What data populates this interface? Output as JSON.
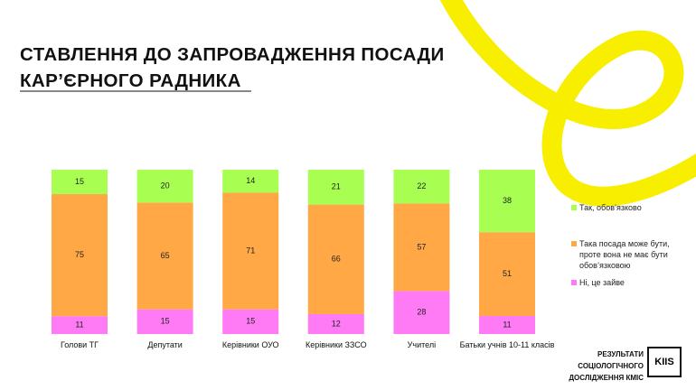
{
  "chart_data": {
    "type": "bar",
    "stacked": true,
    "title": "СТАВЛЕННЯ ДО ЗАПРОВАДЖЕННЯ ПОСАДИ КАР’ЄРНОГО РАДНИКА",
    "categories": [
      "Голови ТГ",
      "Депутати",
      "Керівники ОУО",
      "Керівники ЗЗСО",
      "Учителі",
      "Батьки учнів 10-11 класів"
    ],
    "series": [
      {
        "name": "Ні, це зайве",
        "color": "#ff7bf5",
        "values": [
          11,
          15,
          15,
          12,
          28,
          11
        ]
      },
      {
        "name": "Така посада може бути, проте вона не має бути обов’язковою",
        "color": "#ffa845",
        "values": [
          75,
          65,
          71,
          66,
          57,
          51
        ]
      },
      {
        "name": "Так, обов’язково",
        "color": "#a8ff52",
        "values": [
          15,
          20,
          14,
          21,
          22,
          38
        ]
      }
    ],
    "footer": "РЕЗУЛЬТАТИ СОЦІОЛОГІЧНОГО ДОСЛІДЖЕННЯ КМІС",
    "logo": "KIIS"
  }
}
